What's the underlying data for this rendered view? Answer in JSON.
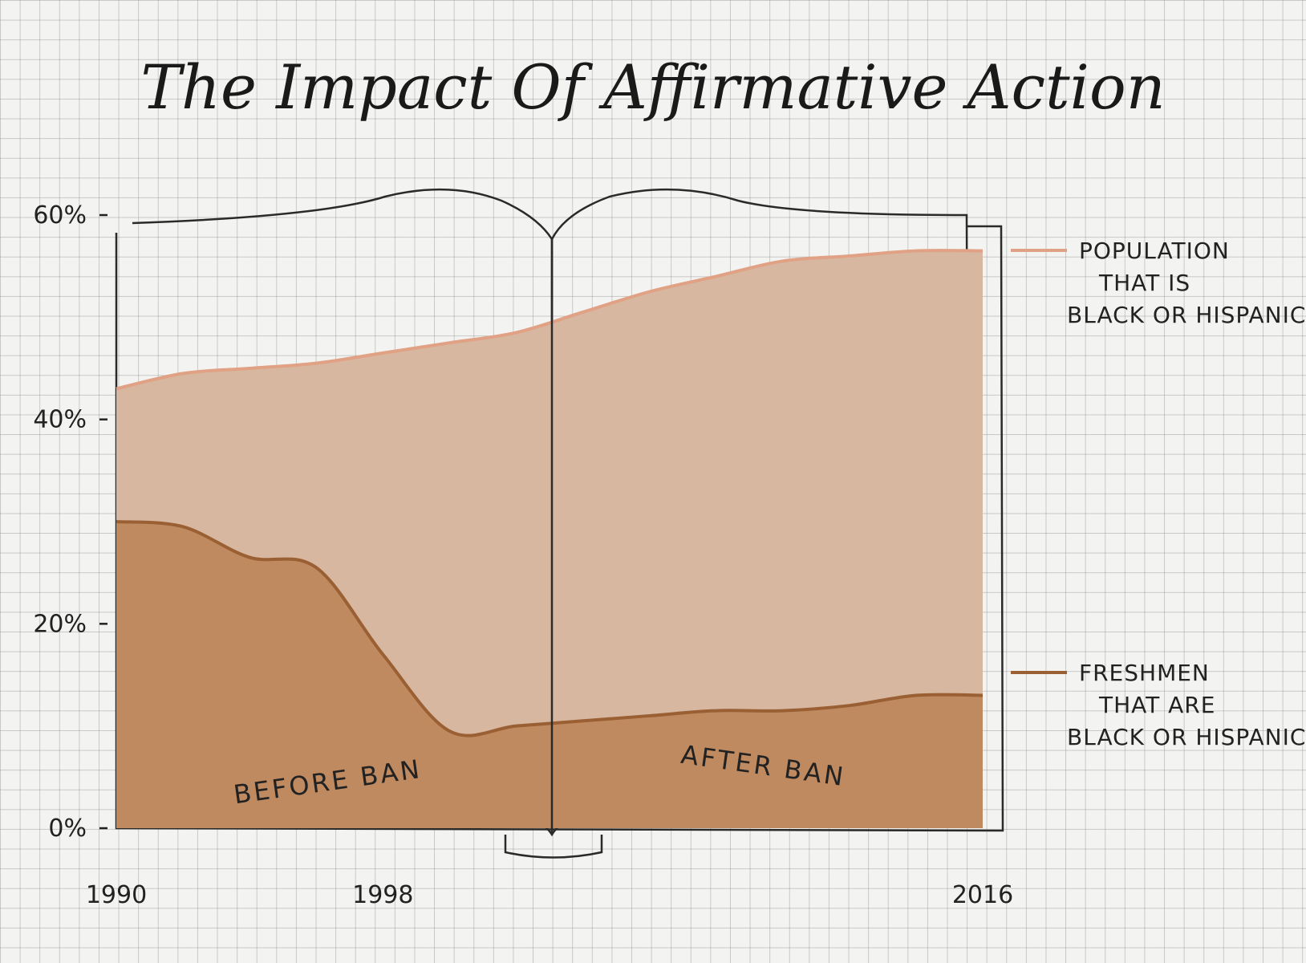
{
  "chart_data": {
    "type": "area",
    "title": "The Impact Of Affirmative Action",
    "x": [
      1990,
      1992,
      1994,
      1996,
      1998,
      2000,
      2002,
      2004,
      2006,
      2008,
      2010,
      2012,
      2014,
      2016
    ],
    "x_ticks": [
      "1990",
      "1998",
      "2016"
    ],
    "y_ticks": [
      "0%",
      "20%",
      "40%",
      "60%"
    ],
    "ylim": [
      0,
      60
    ],
    "series": [
      {
        "name": "POPULATION THAT IS BLACK OR HISPANIC",
        "legend_lines": [
          "POPULATION",
          "THAT IS",
          "BLACK OR HISPANIC"
        ],
        "color": "#e0a184",
        "fill": "#d7b7a0",
        "values": [
          43,
          44.5,
          45,
          45.5,
          46.5,
          47.5,
          48.5,
          50.5,
          52.5,
          54,
          55.5,
          56,
          56.5,
          56.5
        ]
      },
      {
        "name": "FRESHMEN THAT ARE BLACK OR HISPANIC",
        "legend_lines": [
          "FRESHMEN",
          "THAT ARE",
          "BLACK OR HISPANIC"
        ],
        "color": "#9a6034",
        "fill": "#c08a60",
        "values": [
          30,
          29.5,
          26.5,
          25.5,
          17,
          9.5,
          10,
          10.5,
          11,
          11.5,
          11.5,
          12,
          13,
          13
        ]
      }
    ],
    "annotations": [
      "BEFORE BAN",
      "AFTER BAN"
    ]
  }
}
